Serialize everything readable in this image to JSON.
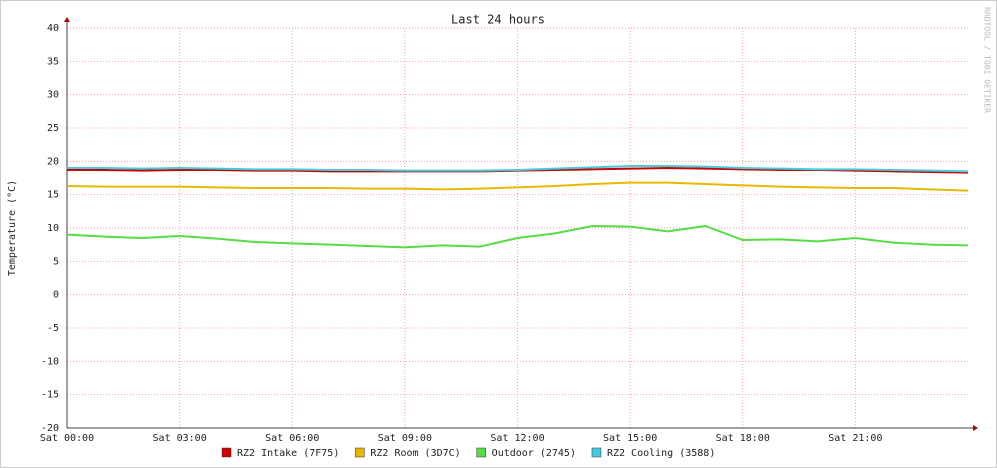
{
  "chart_data": {
    "type": "line",
    "title": "Last 24 hours",
    "y_label": "Temperature (°C)",
    "watermark": "RRDTOOL / TOBI OETIKER",
    "x": [
      0,
      1,
      2,
      3,
      4,
      5,
      6,
      7,
      8,
      9,
      10,
      11,
      12,
      13,
      14,
      15,
      16,
      17,
      18,
      19,
      20,
      21,
      22,
      23,
      24
    ],
    "xlim": [
      0,
      24
    ],
    "xticks": [
      {
        "value": 0,
        "label": "Sat 00:00"
      },
      {
        "value": 3,
        "label": "Sat 03:00"
      },
      {
        "value": 6,
        "label": "Sat 06:00"
      },
      {
        "value": 9,
        "label": "Sat 09:00"
      },
      {
        "value": 12,
        "label": "Sat 12:00"
      },
      {
        "value": 15,
        "label": "Sat 15:00"
      },
      {
        "value": 18,
        "label": "Sat 18:00"
      },
      {
        "value": 21,
        "label": "Sat 21:00"
      }
    ],
    "ylim": [
      -20,
      40
    ],
    "yticks": [
      -20,
      -15,
      -10,
      -5,
      0,
      5,
      10,
      15,
      20,
      25,
      30,
      35,
      40
    ],
    "grid": true,
    "legend": "bottom",
    "series": [
      {
        "name": "RZ2 Intake (7F75)",
        "color": "#cc0000",
        "values": [
          18.7,
          18.7,
          18.6,
          18.7,
          18.7,
          18.6,
          18.6,
          18.5,
          18.5,
          18.5,
          18.5,
          18.5,
          18.6,
          18.7,
          18.8,
          18.9,
          19.0,
          18.9,
          18.8,
          18.7,
          18.7,
          18.6,
          18.5,
          18.4,
          18.3
        ]
      },
      {
        "name": "RZ2 Room (3D7C)",
        "color": "#e8b800",
        "values": [
          16.3,
          16.2,
          16.2,
          16.2,
          16.1,
          16.0,
          16.0,
          16.0,
          15.9,
          15.9,
          15.8,
          15.9,
          16.1,
          16.3,
          16.6,
          16.8,
          16.8,
          16.6,
          16.4,
          16.2,
          16.1,
          16.0,
          16.0,
          15.8,
          15.6
        ]
      },
      {
        "name": "Outdoor (2745)",
        "color": "#55dd44",
        "values": [
          9.0,
          8.7,
          8.5,
          8.8,
          8.4,
          7.9,
          7.7,
          7.5,
          7.3,
          7.1,
          7.4,
          7.2,
          8.5,
          9.2,
          10.3,
          10.2,
          9.5,
          10.3,
          8.2,
          8.3,
          8.0,
          8.5,
          7.8,
          7.5,
          7.4
        ]
      },
      {
        "name": "RZ2 Cooling (3588)",
        "color": "#44ccdd",
        "values": [
          19.0,
          19.0,
          18.9,
          19.0,
          18.9,
          18.8,
          18.8,
          18.7,
          18.7,
          18.6,
          18.6,
          18.6,
          18.7,
          18.9,
          19.1,
          19.3,
          19.3,
          19.2,
          19.0,
          18.9,
          18.8,
          18.8,
          18.7,
          18.6,
          18.5
        ]
      }
    ]
  }
}
